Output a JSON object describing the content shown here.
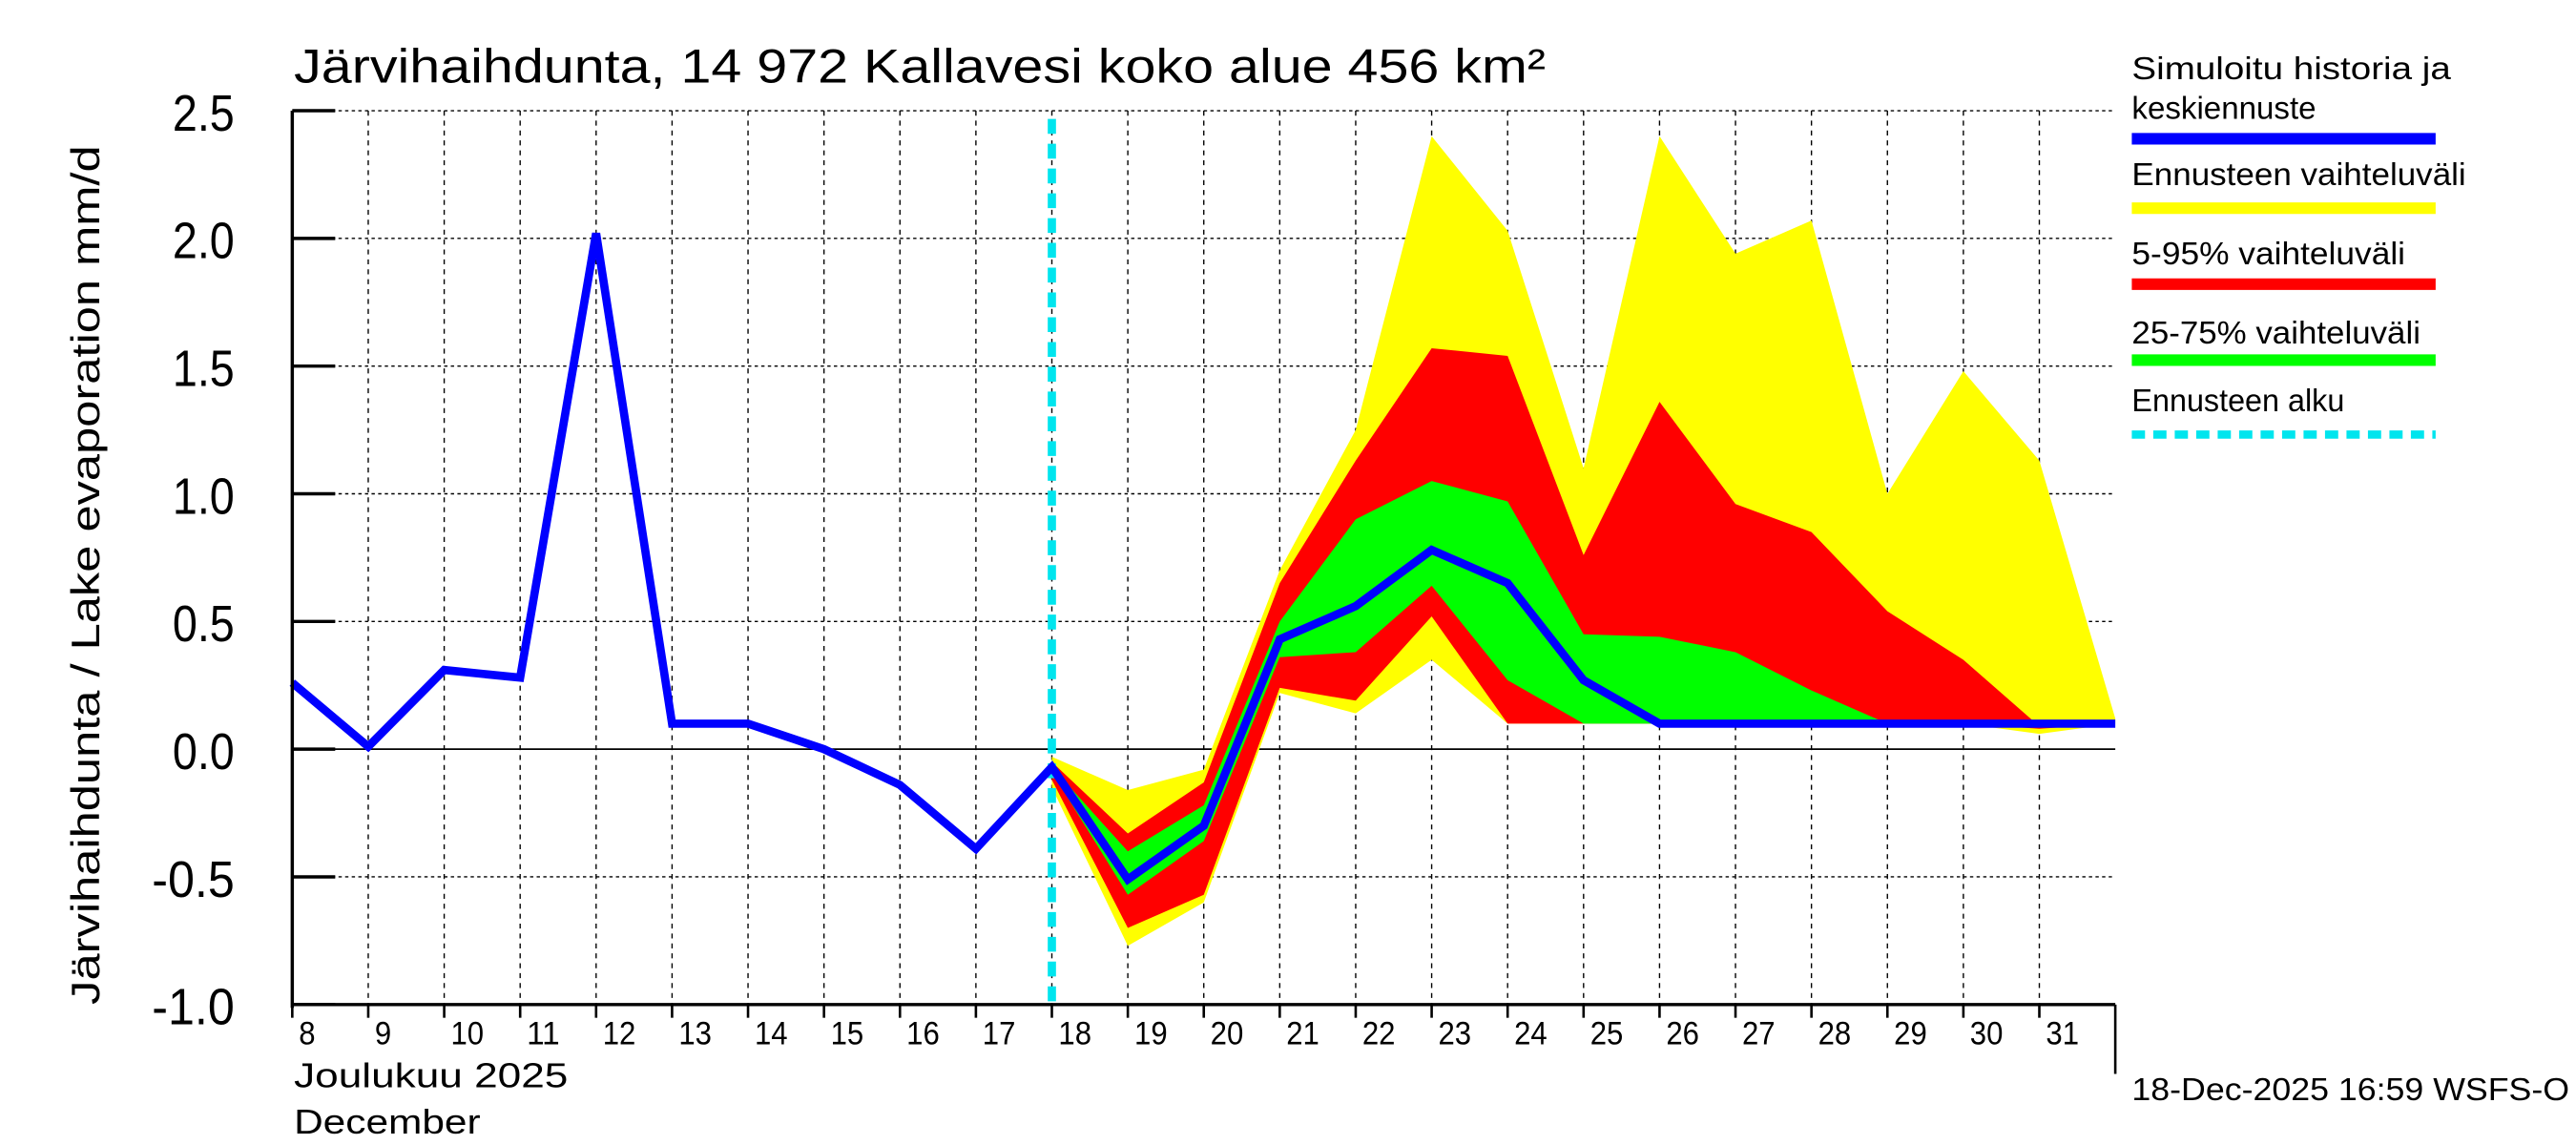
{
  "chart_data": {
    "type": "area",
    "title": "Järvihaihdunta, 14 972 Kallavesi koko alue 456 km²",
    "ylabel": "Järvihaihdunta / Lake evaporation   mm/d",
    "xlabel_fi": "Joulukuu  2025",
    "xlabel_en": "December",
    "footer": "18-Dec-2025 16:59 WSFS-O",
    "ylim": [
      -1.0,
      2.5
    ],
    "yticks": [
      "-1.0",
      "-0.5",
      "0.0",
      "0.5",
      "1.0",
      "1.5",
      "2.0",
      "2.5"
    ],
    "xlim": [
      8,
      32
    ],
    "xticks": [
      "8",
      "9",
      "10",
      "11",
      "12",
      "13",
      "14",
      "15",
      "16",
      "17",
      "18",
      "19",
      "20",
      "21",
      "22",
      "23",
      "24",
      "25",
      "26",
      "27",
      "28",
      "29",
      "30",
      "31"
    ],
    "forecast_start": 18,
    "colors": {
      "median": "#0000ff",
      "range": "#ffff00",
      "p5_95": "#ff0000",
      "p25_75": "#00ff00",
      "start": "#00e5ee"
    },
    "legend": [
      {
        "label": "Simuloitu historia ja",
        "label2": "keskiennuste",
        "key": "median"
      },
      {
        "label": "Ennusteen vaihteluväli",
        "key": "range"
      },
      {
        "label": "5-95% vaihteluväli",
        "key": "p5_95"
      },
      {
        "label": "25-75% vaihteluväli",
        "key": "p25_75"
      },
      {
        "label": "Ennusteen alku",
        "key": "start"
      }
    ],
    "bands_x": [
      18,
      19,
      20,
      21,
      22,
      23,
      24,
      25,
      26,
      27,
      28,
      29,
      30,
      31,
      32
    ],
    "range_max": [
      -0.03,
      -0.16,
      -0.08,
      0.7,
      1.25,
      2.4,
      2.03,
      1.1,
      2.4,
      1.94,
      2.07,
      1.0,
      1.48,
      1.13,
      0.12
    ],
    "range_min": [
      -0.15,
      -0.77,
      -0.6,
      0.22,
      0.14,
      0.35,
      0.1,
      0.1,
      0.1,
      0.1,
      0.1,
      0.1,
      0.1,
      0.06,
      0.1
    ],
    "p95": [
      -0.05,
      -0.33,
      -0.13,
      0.65,
      1.13,
      1.57,
      1.54,
      0.76,
      1.36,
      0.96,
      0.85,
      0.54,
      0.35,
      0.09,
      0.1
    ],
    "p5": [
      -0.12,
      -0.7,
      -0.57,
      0.24,
      0.19,
      0.52,
      0.1,
      0.1,
      0.1,
      0.1,
      0.1,
      0.1,
      0.1,
      0.08,
      0.1
    ],
    "p75": [
      -0.07,
      -0.4,
      -0.22,
      0.5,
      0.9,
      1.05,
      0.97,
      0.45,
      0.44,
      0.38,
      0.23,
      0.1,
      0.1,
      0.1,
      0.1
    ],
    "p25": [
      -0.09,
      -0.57,
      -0.36,
      0.36,
      0.38,
      0.64,
      0.27,
      0.1,
      0.1,
      0.1,
      0.1,
      0.1,
      0.1,
      0.1,
      0.1
    ],
    "median_x": [
      8,
      9,
      10,
      11,
      12,
      13,
      14,
      15,
      16,
      17,
      18,
      19,
      20,
      21,
      22,
      23,
      24,
      25,
      26,
      27,
      28,
      29,
      30,
      31,
      32
    ],
    "median": [
      0.26,
      0.01,
      0.31,
      0.28,
      2.02,
      0.1,
      0.1,
      0.0,
      -0.14,
      -0.39,
      -0.07,
      -0.51,
      -0.3,
      0.43,
      0.56,
      0.78,
      0.65,
      0.27,
      0.1,
      0.1,
      0.1,
      0.1,
      0.1,
      0.1,
      0.1
    ]
  }
}
